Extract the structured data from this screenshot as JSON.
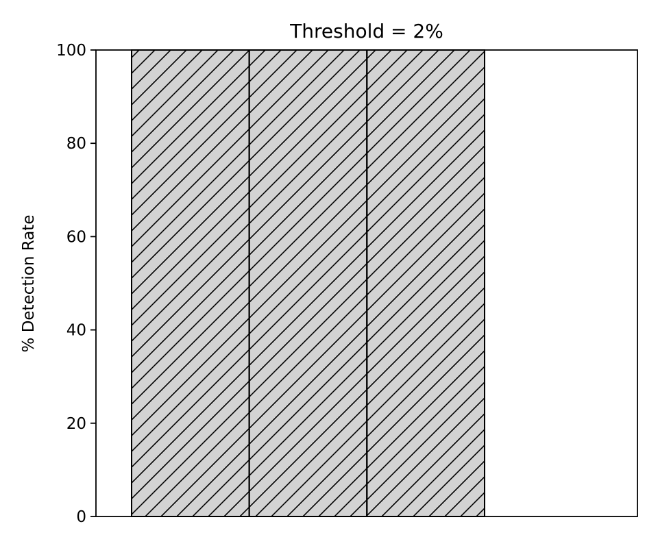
{
  "chart_data": {
    "type": "bar",
    "title": "Threshold = 2%",
    "xlabel": "",
    "ylabel": "% Detection Rate",
    "ylim": [
      0,
      100
    ],
    "yticks": [
      0,
      20,
      40,
      60,
      80,
      100
    ],
    "x_tick_labels": "none",
    "categories": [
      "",
      "",
      ""
    ],
    "values": [
      100,
      100,
      100
    ],
    "x_slots": 4,
    "bar_fill": "#d3d3d3",
    "bar_edge": "#000000",
    "bar_pattern": "diagonal-hatch",
    "grid": false,
    "legend": "none"
  }
}
